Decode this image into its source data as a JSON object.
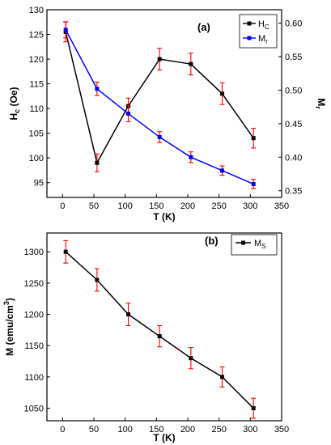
{
  "chart_data": [
    {
      "type": "line",
      "panel_label": "(a)",
      "x": [
        5,
        55,
        105,
        155,
        205,
        255,
        305
      ],
      "xlabel": "T (K)",
      "xlim": [
        -25,
        350
      ],
      "xticks": [
        0,
        50,
        100,
        150,
        200,
        250,
        300,
        350
      ],
      "ylabel_left": "H_c (Oe)",
      "ylabel_left_main": "H",
      "ylabel_left_sub": "c",
      "ylabel_left_rest": " (Oe)",
      "ylim_left": [
        92,
        130
      ],
      "yticks_left": [
        95,
        100,
        105,
        110,
        115,
        120,
        125,
        130
      ],
      "ylabel_right_main": "M",
      "ylabel_right_sub": "r",
      "ylim_right": [
        0.34,
        0.62
      ],
      "yticks_right": [
        "0.35",
        "0.40",
        "0.45",
        "0.50",
        "0.55",
        "0.60"
      ],
      "legend_position": "top-right",
      "series": [
        {
          "name": "H_C",
          "legend_main": "H",
          "legend_sub": "C",
          "axis": "left",
          "color": "#000000",
          "marker": "square",
          "values": [
            125.5,
            99,
            110.5,
            120,
            119,
            113,
            104
          ],
          "errors": [
            2,
            1.8,
            1.6,
            2.2,
            2.2,
            2.2,
            2
          ]
        },
        {
          "name": "M_r",
          "legend_main": "M",
          "legend_sub": "r",
          "axis": "right",
          "color": "#0000ff",
          "marker": "square",
          "values": [
            0.59,
            0.502,
            0.465,
            0.43,
            0.4,
            0.38,
            0.36
          ],
          "errors": [
            0.012,
            0.01,
            0.012,
            0.008,
            0.008,
            0.007,
            0.007
          ]
        }
      ],
      "errorbar_color": "#ff0000"
    },
    {
      "type": "line",
      "panel_label": "(b)",
      "x": [
        5,
        55,
        105,
        155,
        205,
        255,
        305
      ],
      "xlabel": "T (K)",
      "xlim": [
        -25,
        350
      ],
      "xticks": [
        0,
        50,
        100,
        150,
        200,
        250,
        300,
        350
      ],
      "ylabel_main": "M (emu/cm",
      "ylabel_sup": "3",
      "ylabel_close": ")",
      "ylim": [
        1030,
        1330
      ],
      "yticks": [
        1050,
        1100,
        1150,
        1200,
        1250,
        1300
      ],
      "legend_position": "top-right",
      "series": [
        {
          "name": "M_S",
          "legend_main": "M",
          "legend_sub": "S",
          "color": "#000000",
          "marker": "square",
          "values": [
            1300,
            1255,
            1200,
            1165,
            1130,
            1100,
            1050
          ],
          "errors": [
            18,
            18,
            18,
            17,
            17,
            16,
            16
          ]
        }
      ],
      "errorbar_color": "#ff0000"
    }
  ]
}
